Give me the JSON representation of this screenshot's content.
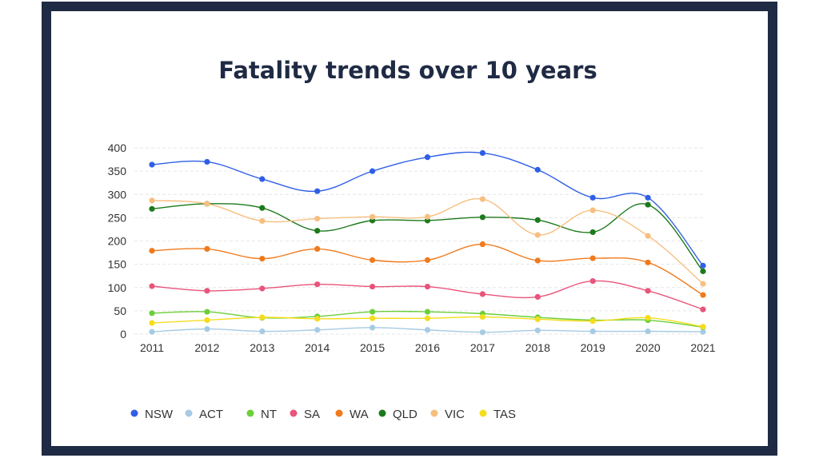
{
  "chart_data": {
    "type": "line",
    "title": "Fatality trends over 10 years",
    "xlabel": "",
    "ylabel": "",
    "categories": [
      "2011",
      "2012",
      "2013",
      "2014",
      "2015",
      "2016",
      "2017",
      "2018",
      "2019",
      "2020",
      "2021"
    ],
    "ylim": [
      0,
      400
    ],
    "yticks": [
      0,
      50,
      100,
      150,
      200,
      250,
      300,
      350,
      400
    ],
    "grid": true,
    "legend": "bottom-left",
    "series": [
      {
        "name": "NSW",
        "color": "#2f5fe6",
        "values": [
          364,
          370,
          333,
          307,
          350,
          380,
          389,
          353,
          293,
          293,
          147
        ]
      },
      {
        "name": "ACT",
        "color": "#a6cbe3",
        "values": [
          5,
          11,
          6,
          9,
          14,
          9,
          4,
          8,
          6,
          6,
          5
        ]
      },
      {
        "name": "NT",
        "color": "#6ccf3a",
        "values": [
          45,
          48,
          35,
          38,
          48,
          48,
          44,
          36,
          30,
          30,
          15
        ]
      },
      {
        "name": "SA",
        "color": "#e8547a",
        "values": [
          103,
          93,
          98,
          107,
          102,
          102,
          86,
          80,
          114,
          93,
          53
        ]
      },
      {
        "name": "WA",
        "color": "#f07a1c",
        "values": [
          179,
          183,
          162,
          183,
          159,
          159,
          193,
          158,
          163,
          154,
          84
        ]
      },
      {
        "name": "QLD",
        "color": "#1c7a1c",
        "values": [
          269,
          280,
          271,
          222,
          244,
          244,
          251,
          245,
          219,
          278,
          135
        ]
      },
      {
        "name": "VIC",
        "color": "#f7bf7f",
        "values": [
          287,
          280,
          243,
          248,
          252,
          252,
          290,
          213,
          266,
          211,
          108
        ]
      },
      {
        "name": "TAS",
        "color": "#f5dd1d",
        "values": [
          24,
          30,
          36,
          33,
          34,
          34,
          37,
          32,
          28,
          35,
          16
        ]
      }
    ]
  }
}
